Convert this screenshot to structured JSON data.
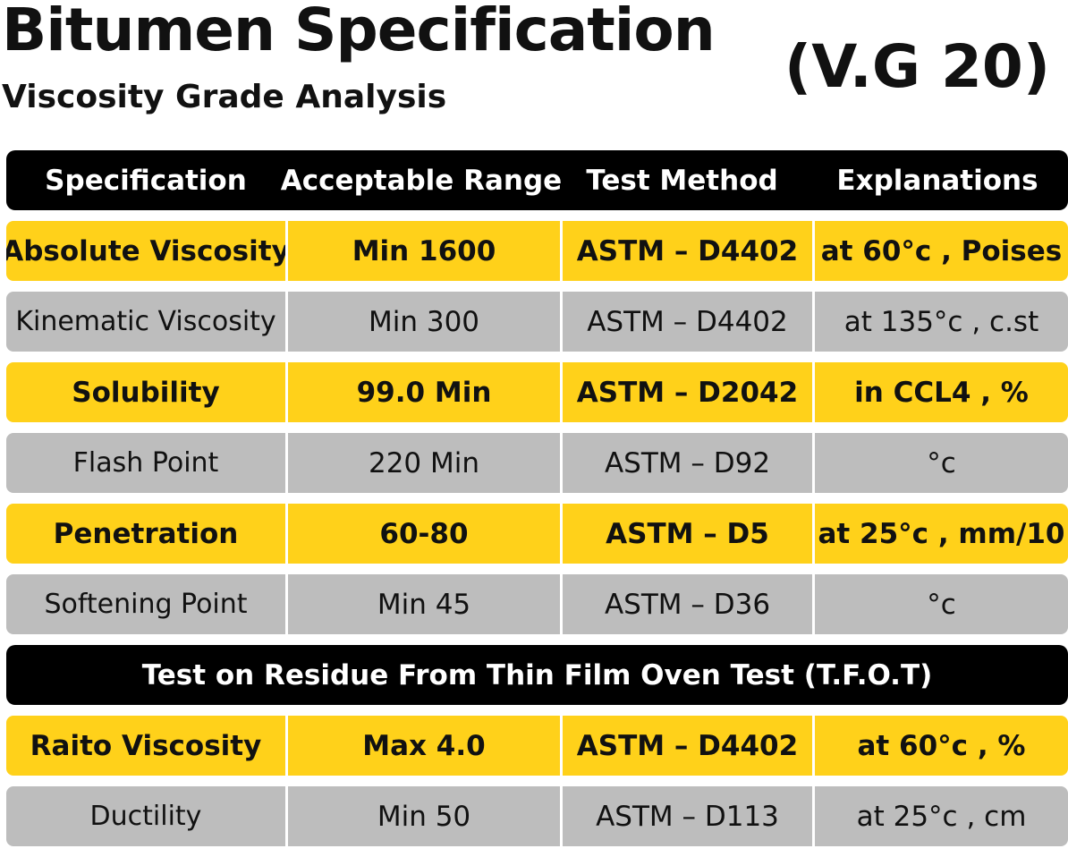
{
  "header": {
    "title": "Bitumen Specification",
    "subtitle": "Viscosity Grade Analysis",
    "grade": "(V.G 20)"
  },
  "table": {
    "columns": [
      "Specification",
      "Acceptable Range",
      "Test Method",
      "Explanations"
    ],
    "rows": [
      {
        "spec": "Absolute Viscosity",
        "range": "Min 1600",
        "method": "ASTM – D4402",
        "explanation": "at 60°c , Poises"
      },
      {
        "spec": "Kinematic Viscosity",
        "range": "Min 300",
        "method": "ASTM – D4402",
        "explanation": "at 135°c , c.st"
      },
      {
        "spec": "Solubility",
        "range": "99.0 Min",
        "method": "ASTM – D2042",
        "explanation": "in CCL4 , %"
      },
      {
        "spec": "Flash Point",
        "range": "220 Min",
        "method": "ASTM – D92",
        "explanation": "°c"
      },
      {
        "spec": "Penetration",
        "range": "60-80",
        "method": "ASTM – D5",
        "explanation": "at 25°c , mm/10"
      },
      {
        "spec": "Softening Point",
        "range": "Min 45",
        "method": "ASTM – D36",
        "explanation": "°c"
      }
    ],
    "section_title": "Test on Residue From Thin Film Oven Test (T.F.O.T)",
    "residue_rows": [
      {
        "spec": "Raito Viscosity",
        "range": "Max 4.0",
        "method": "ASTM – D4402",
        "explanation": "at 60°c , %"
      },
      {
        "spec": "Ductility",
        "range": "Min 50",
        "method": "ASTM – D113",
        "explanation": "at 25°c , cm"
      }
    ]
  },
  "colors": {
    "header_bg": "#000000",
    "yellow_row": "#ffd11a",
    "gray_row": "#bdbdbd"
  }
}
